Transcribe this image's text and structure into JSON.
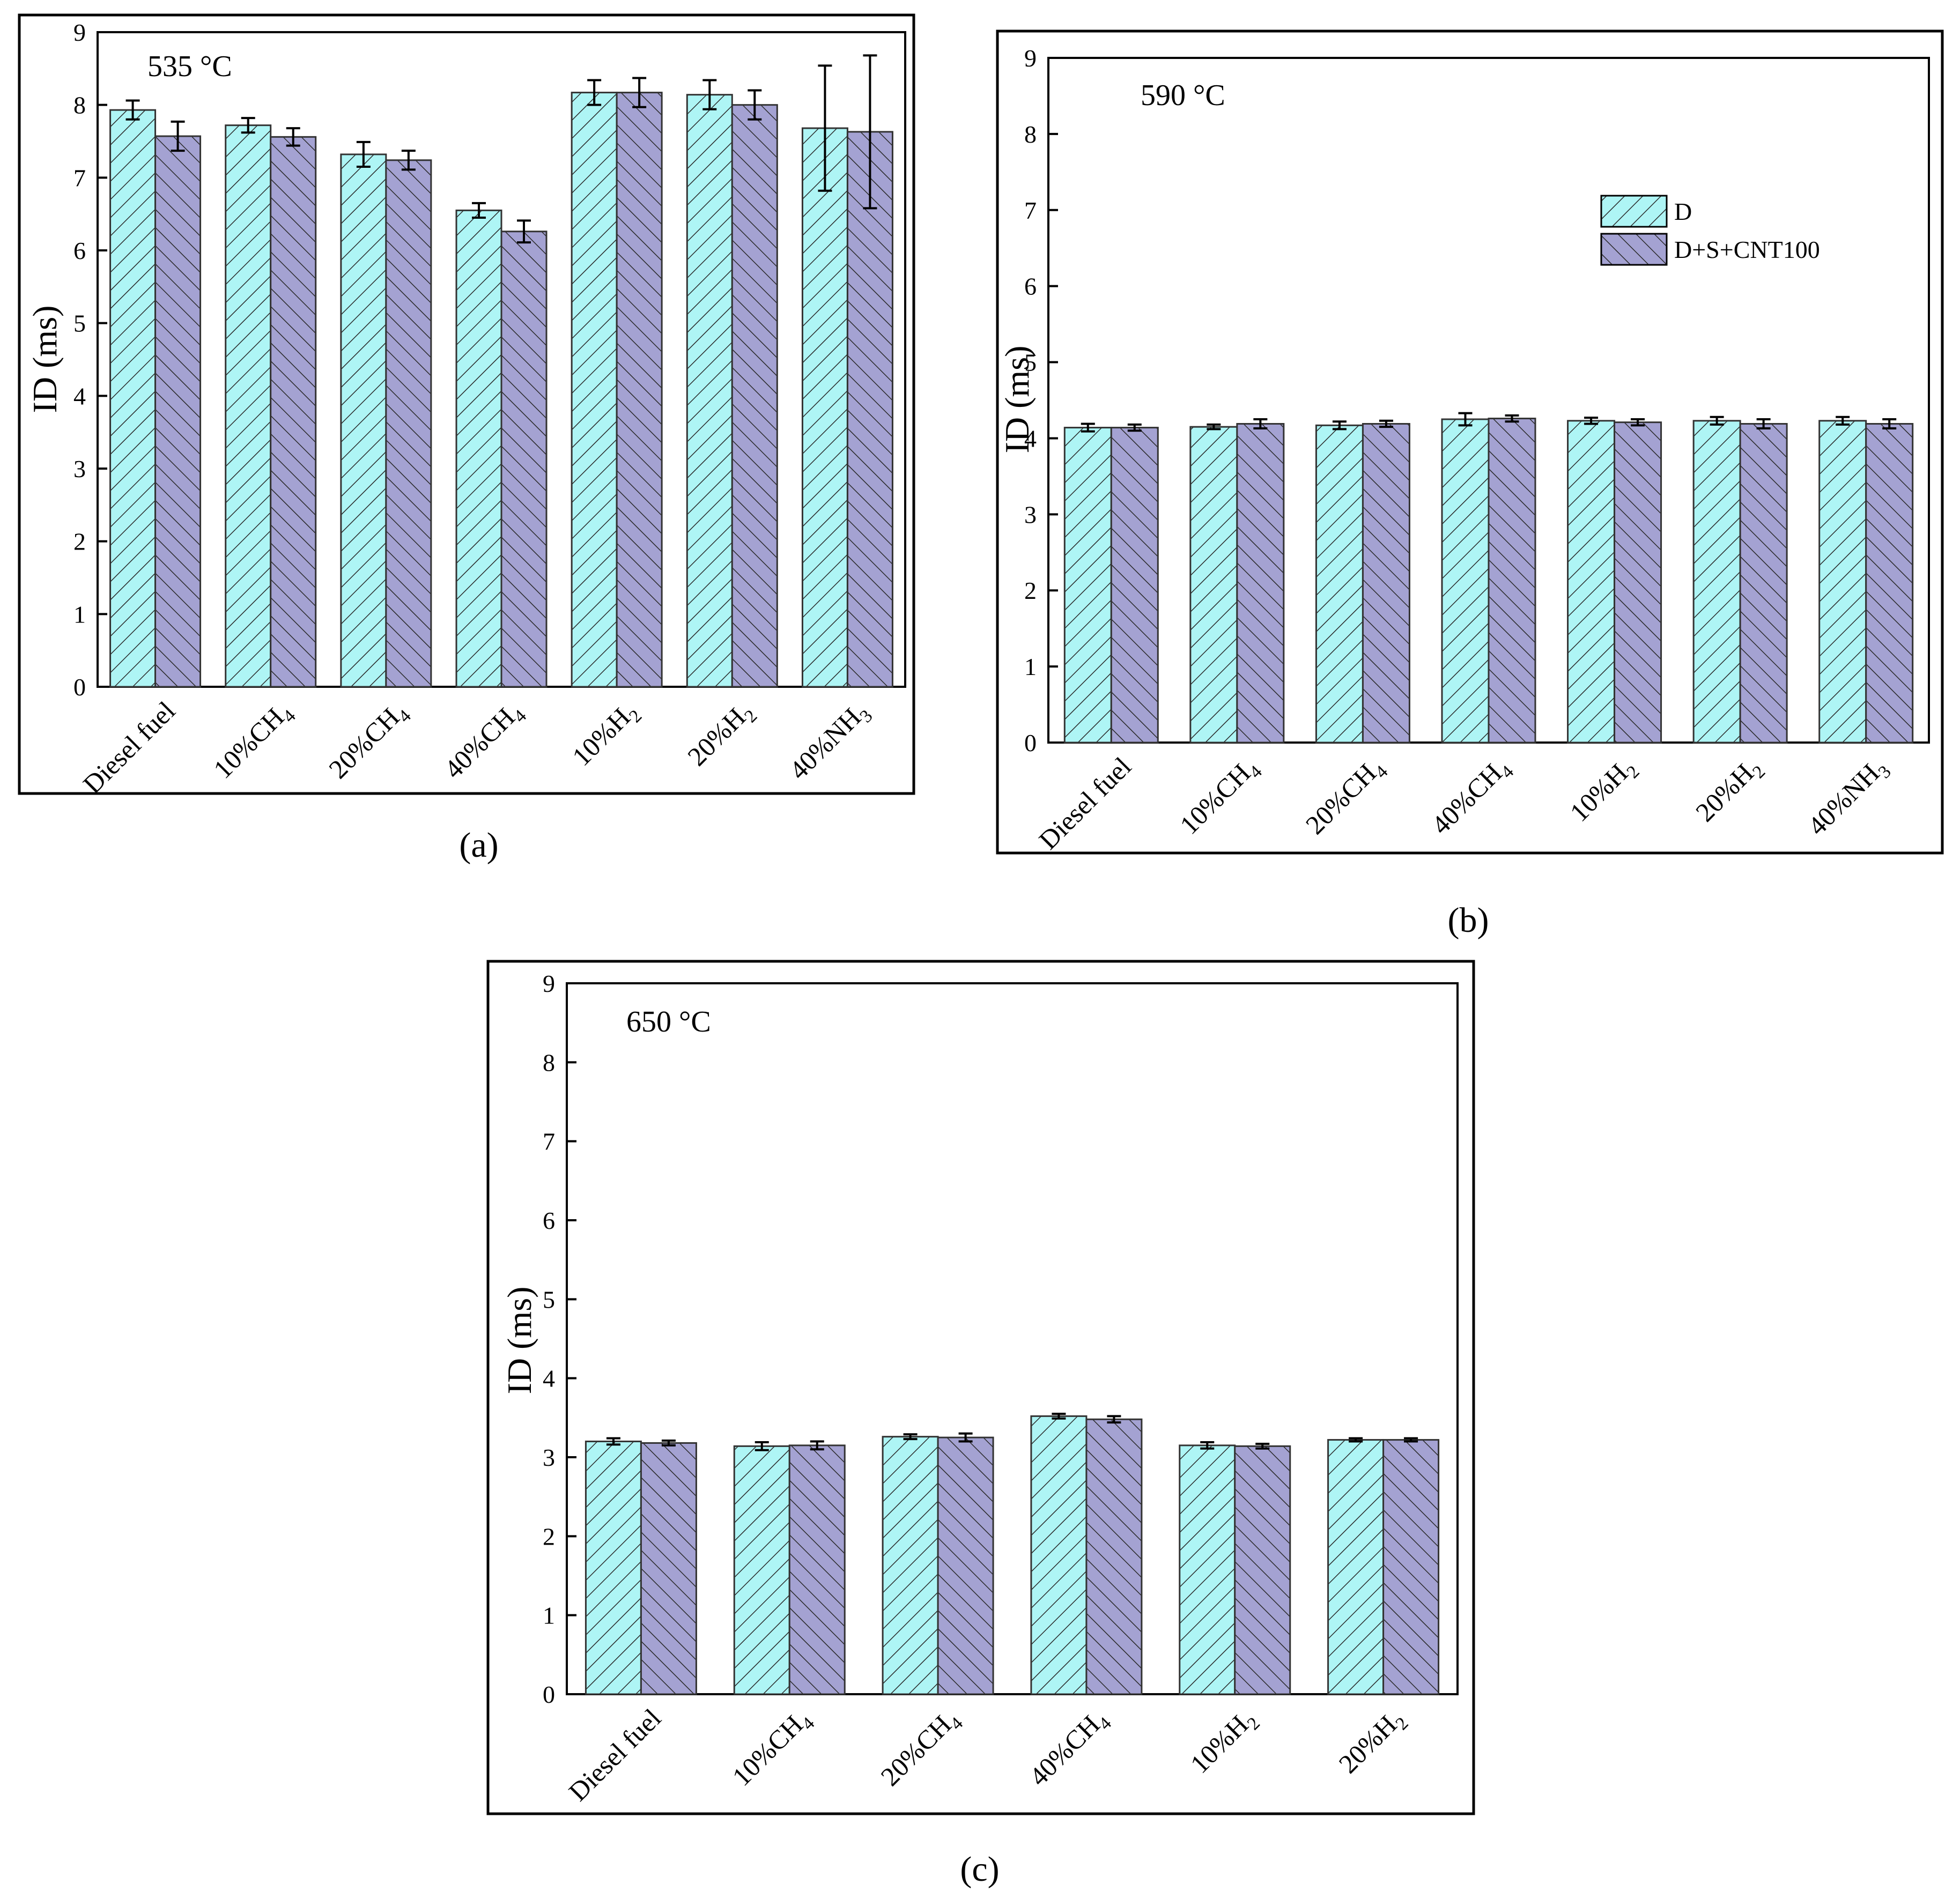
{
  "figure": {
    "captions": [
      "(a)",
      "(b)",
      "(c)"
    ]
  },
  "colors": {
    "D": "#aef5f5",
    "D+S+CNT100": "#a4a2d2",
    "axis": "#000000",
    "hatch": "#2a2a2a"
  },
  "legend": {
    "entries": [
      "D",
      "D+S+CNT100"
    ]
  },
  "chart_data": [
    {
      "type": "bar",
      "panel": "(a)",
      "title": "535 °C",
      "xlabel": "",
      "ylabel": "ID (ms)",
      "ylim": [
        0,
        9
      ],
      "yticks": [
        0,
        1,
        2,
        3,
        4,
        5,
        6,
        7,
        8,
        9
      ],
      "categories": [
        {
          "base": "Diesel fuel",
          "sub": ""
        },
        {
          "base": "10%CH",
          "sub": "4"
        },
        {
          "base": "20%CH",
          "sub": "4"
        },
        {
          "base": "40%CH",
          "sub": "4"
        },
        {
          "base": "10%H",
          "sub": "2"
        },
        {
          "base": "20%H",
          "sub": "2"
        },
        {
          "base": "40%NH",
          "sub": "3"
        }
      ],
      "series": [
        {
          "name": "D",
          "values": [
            7.93,
            7.72,
            7.32,
            6.55,
            8.17,
            8.14,
            7.68
          ],
          "errors": [
            0.13,
            0.1,
            0.17,
            0.1,
            0.17,
            0.2,
            0.86
          ]
        },
        {
          "name": "D+S+CNT100",
          "values": [
            7.57,
            7.56,
            7.24,
            6.26,
            8.17,
            8.0,
            7.63
          ],
          "errors": [
            0.2,
            0.12,
            0.13,
            0.15,
            0.2,
            0.2,
            1.05
          ]
        }
      ]
    },
    {
      "type": "bar",
      "panel": "(b)",
      "title": "590 °C",
      "xlabel": "",
      "ylabel": "ID (ms)",
      "ylim": [
        0,
        9
      ],
      "yticks": [
        0,
        1,
        2,
        3,
        4,
        5,
        6,
        7,
        8,
        9
      ],
      "legend": [
        "D",
        "D+S+CNT100"
      ],
      "categories": [
        {
          "base": "Diesel fuel",
          "sub": ""
        },
        {
          "base": "10%CH",
          "sub": "4"
        },
        {
          "base": "20%CH",
          "sub": "4"
        },
        {
          "base": "40%CH",
          "sub": "4"
        },
        {
          "base": "10%H",
          "sub": "2"
        },
        {
          "base": "20%H",
          "sub": "2"
        },
        {
          "base": "40%NH",
          "sub": "3"
        }
      ],
      "series": [
        {
          "name": "D",
          "values": [
            4.14,
            4.15,
            4.17,
            4.25,
            4.23,
            4.23,
            4.23
          ],
          "errors": [
            0.05,
            0.03,
            0.05,
            0.08,
            0.04,
            0.05,
            0.05
          ]
        },
        {
          "name": "D+S+CNT100",
          "values": [
            4.14,
            4.19,
            4.19,
            4.26,
            4.21,
            4.19,
            4.19
          ],
          "errors": [
            0.04,
            0.06,
            0.04,
            0.04,
            0.04,
            0.06,
            0.06
          ]
        }
      ]
    },
    {
      "type": "bar",
      "panel": "(c)",
      "title": "650 °C",
      "xlabel": "",
      "ylabel": "ID (ms)",
      "ylim": [
        0,
        9
      ],
      "yticks": [
        0,
        1,
        2,
        3,
        4,
        5,
        6,
        7,
        8,
        9
      ],
      "categories": [
        {
          "base": "Diesel fuel",
          "sub": ""
        },
        {
          "base": "10%CH",
          "sub": "4"
        },
        {
          "base": "20%CH",
          "sub": "4"
        },
        {
          "base": "40%CH",
          "sub": "4"
        },
        {
          "base": "10%H",
          "sub": "2"
        },
        {
          "base": "20%H",
          "sub": "2"
        }
      ],
      "series": [
        {
          "name": "D",
          "values": [
            3.2,
            3.14,
            3.26,
            3.52,
            3.15,
            3.22
          ],
          "errors": [
            0.04,
            0.05,
            0.03,
            0.03,
            0.04,
            0.02
          ]
        },
        {
          "name": "D+S+CNT100",
          "values": [
            3.18,
            3.15,
            3.25,
            3.48,
            3.14,
            3.22
          ],
          "errors": [
            0.03,
            0.05,
            0.05,
            0.04,
            0.03,
            0.02
          ]
        }
      ]
    }
  ]
}
